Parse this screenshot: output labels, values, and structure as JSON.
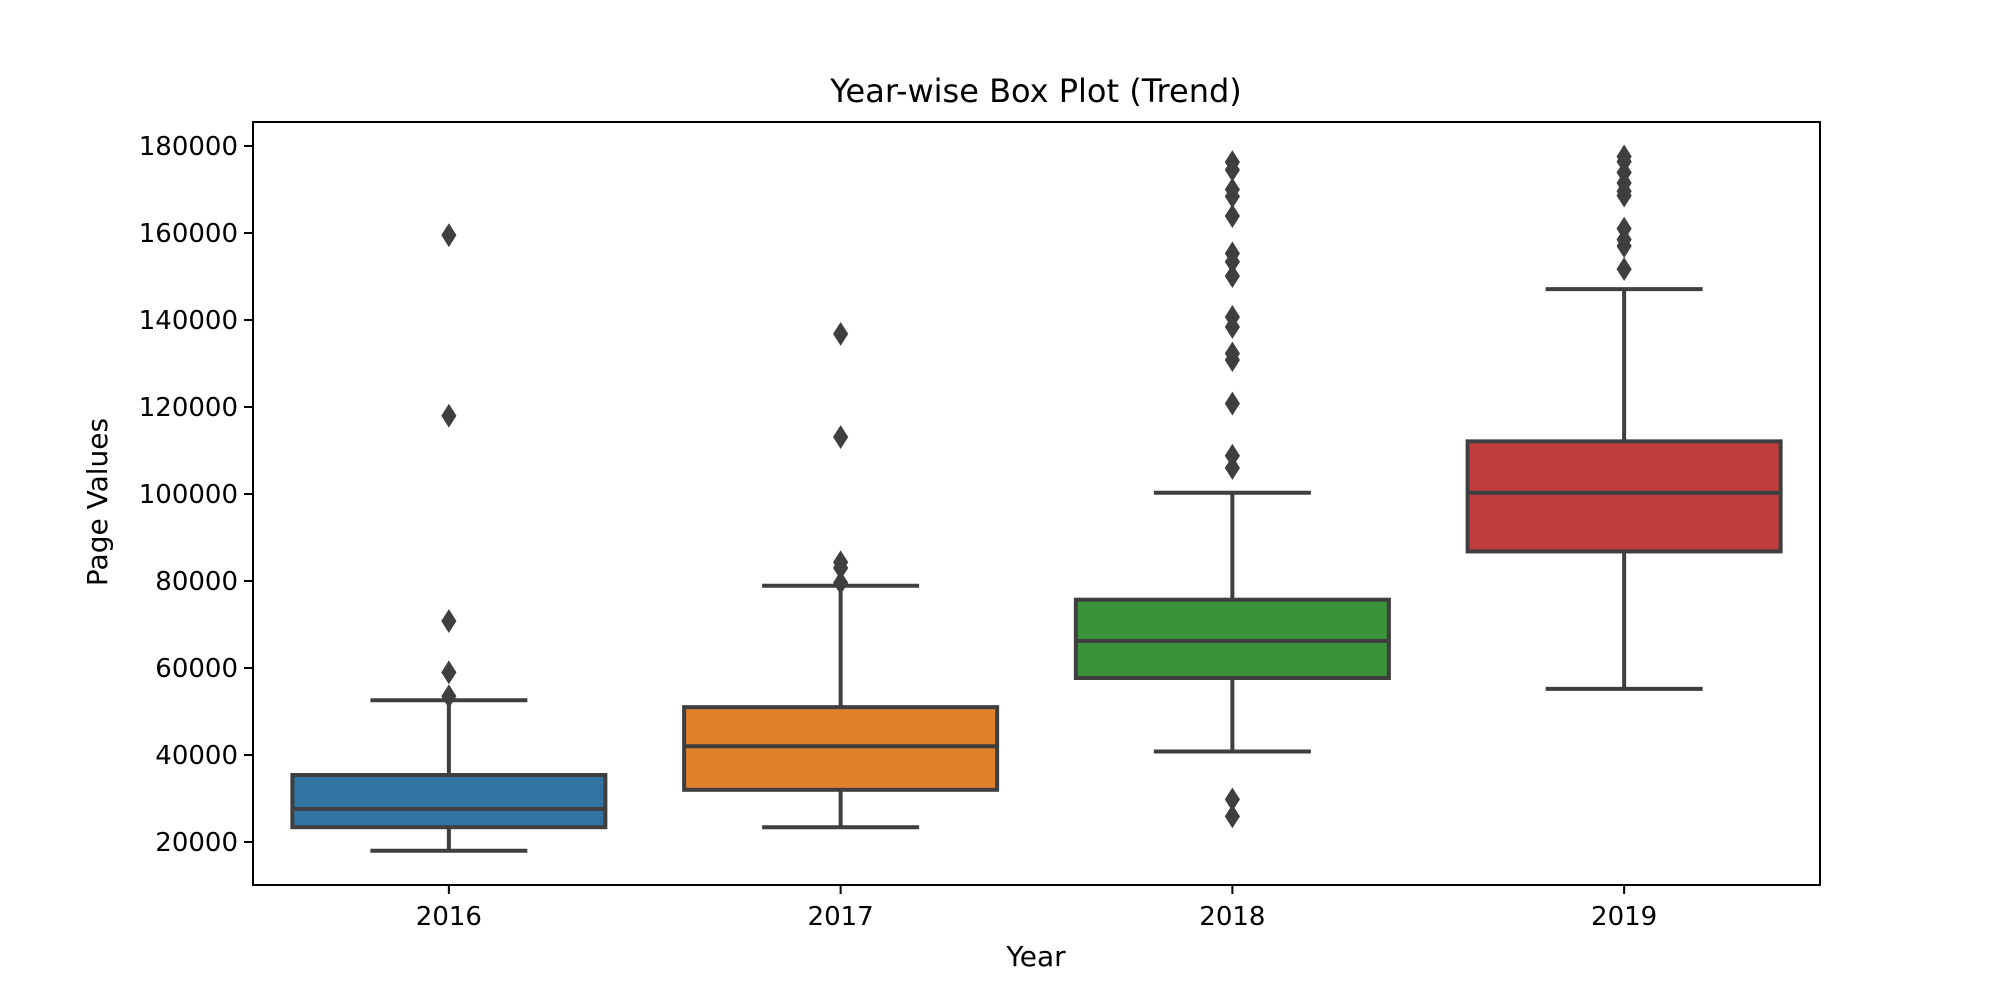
{
  "chart_data": {
    "type": "box",
    "title": "Year-wise Box Plot (Trend)",
    "xlabel": "Year",
    "ylabel": "Page Values",
    "ylim": [
      10000,
      185000
    ],
    "y_ticks": [
      20000,
      40000,
      60000,
      80000,
      100000,
      120000,
      140000,
      160000,
      180000
    ],
    "y_tick_labels": [
      "20000",
      "40000",
      "60000",
      "80000",
      "100000",
      "120000",
      "140000",
      "160000",
      "180000"
    ],
    "grid": false,
    "categories": [
      "2016",
      "2017",
      "2018",
      "2019"
    ],
    "boxes": [
      {
        "category": "2016",
        "color": "#3274a1",
        "whisker_low": 18000,
        "q1": 23400,
        "median": 27600,
        "q3": 35400,
        "whisker_high": 52600,
        "outliers": [
          53500,
          59000,
          70800,
          118000,
          159500
        ]
      },
      {
        "category": "2017",
        "color": "#e1812c",
        "whisker_low": 23400,
        "q1": 32000,
        "median": 42000,
        "q3": 51000,
        "whisker_high": 78900,
        "outliers": [
          79600,
          83000,
          84300,
          113100,
          136800
        ]
      },
      {
        "category": "2018",
        "color": "#3a923a",
        "whisker_low": 40800,
        "q1": 57700,
        "median": 66200,
        "q3": 75700,
        "whisker_high": 100300,
        "outliers": [
          25900,
          29800,
          106000,
          108800,
          120800,
          130800,
          132300,
          138400,
          140700,
          150100,
          153400,
          155300,
          163900,
          168400,
          170000,
          174500,
          176300
        ]
      },
      {
        "category": "2019",
        "color": "#c03d3e",
        "whisker_low": 55200,
        "q1": 86800,
        "median": 100300,
        "q3": 112100,
        "whisker_high": 147100,
        "outliers": [
          151700,
          157000,
          158500,
          161000,
          168600,
          169600,
          171500,
          173900,
          176400,
          177600
        ]
      }
    ]
  }
}
